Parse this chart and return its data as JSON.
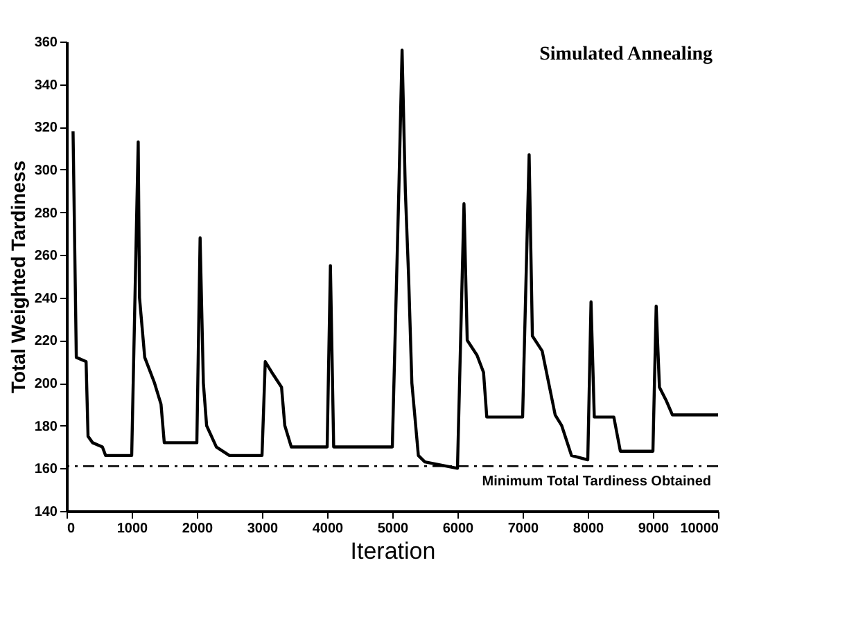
{
  "chart_data": {
    "type": "line",
    "title": "Simulated Annealing",
    "xlabel": "Iteration",
    "ylabel": "Total Weighted Tardiness",
    "x": [
      100,
      150,
      300,
      330,
      400,
      550,
      600,
      1000,
      1100,
      1120,
      1200,
      1350,
      1450,
      1500,
      2000,
      2050,
      2100,
      2150,
      2300,
      2500,
      3000,
      3050,
      3150,
      3300,
      3350,
      3450,
      4000,
      4050,
      4100,
      5000,
      5100,
      5150,
      5200,
      5250,
      5300,
      5400,
      5500,
      6000,
      6100,
      6150,
      6300,
      6400,
      6450,
      7000,
      7100,
      7150,
      7300,
      7400,
      7500,
      7600,
      7750,
      8000,
      8050,
      8100,
      8400,
      8500,
      9000,
      9050,
      9100,
      9200,
      9300,
      10000
    ],
    "series": [
      {
        "color": "#000000",
        "values": [
          318,
          212,
          210,
          175,
          172,
          170,
          166,
          166,
          313,
          240,
          212,
          200,
          190,
          172,
          172,
          268,
          200,
          180,
          170,
          166,
          166,
          210,
          205,
          198,
          180,
          170,
          170,
          255,
          170,
          170,
          290,
          356,
          290,
          250,
          200,
          166,
          163,
          160,
          284,
          220,
          213,
          205,
          184,
          184,
          307,
          222,
          215,
          200,
          185,
          180,
          166,
          164,
          238,
          184,
          184,
          168,
          168,
          236,
          198,
          192,
          185,
          185
        ]
      }
    ],
    "xlim": [
      0,
      10000
    ],
    "xticks": [
      0,
      1000,
      2000,
      3000,
      4000,
      5000,
      6000,
      7000,
      8000,
      9000,
      10000
    ],
    "ylim": [
      140,
      360
    ],
    "yticks": [
      140,
      160,
      180,
      200,
      220,
      240,
      260,
      280,
      300,
      320,
      340,
      360
    ],
    "grid": false,
    "marker": "none",
    "line_style": "solid",
    "ref_lines": [
      {
        "axis": "y",
        "value": 161,
        "label": "Minimum Total Tardiness Obtained",
        "color": "#000000",
        "line_style": "dashed"
      }
    ]
  }
}
